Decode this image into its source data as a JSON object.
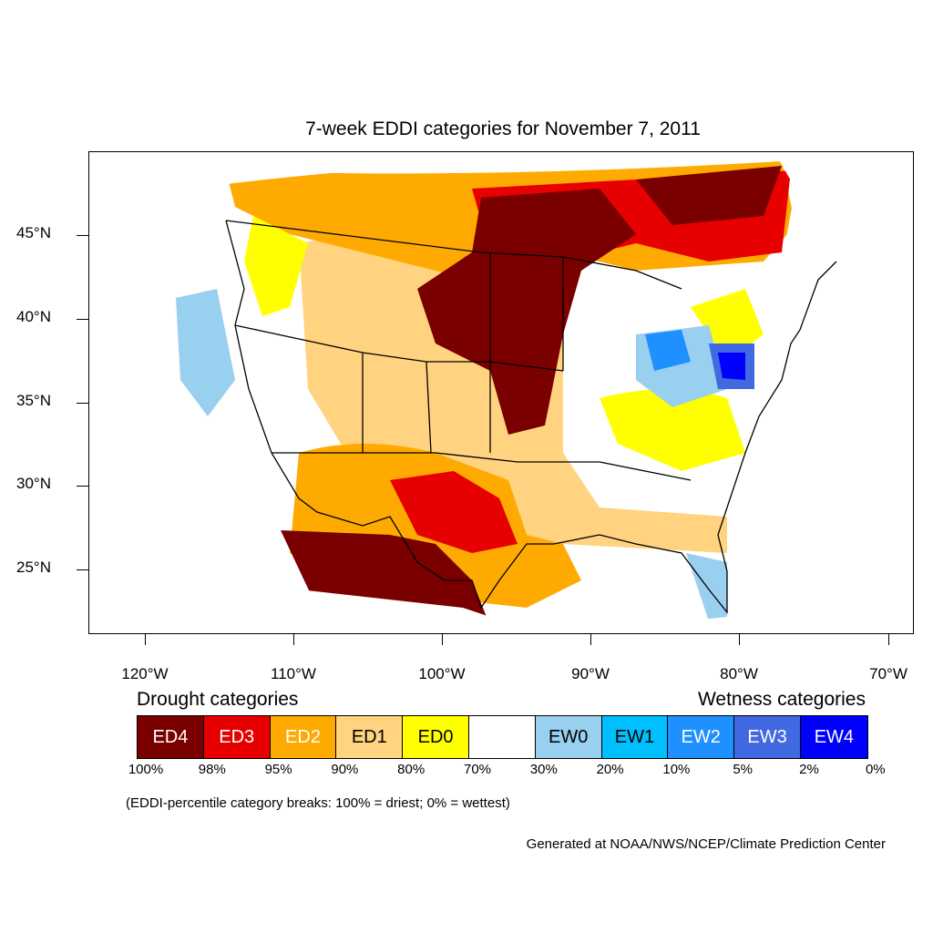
{
  "title": "7-week EDDI categories for November 7, 2011",
  "latitude_labels": [
    "45°N",
    "40°N",
    "35°N",
    "30°N",
    "25°N"
  ],
  "longitude_labels": [
    "120°W",
    "110°W",
    "100°W",
    "90°W",
    "80°W",
    "70°W"
  ],
  "legend": {
    "drought_heading": "Drought categories",
    "wetness_heading": "Wetness categories",
    "categories": [
      {
        "label": "ED4",
        "color": "#7a0000",
        "text_color": "#ffffff"
      },
      {
        "label": "ED3",
        "color": "#e60000",
        "text_color": "#ffffff"
      },
      {
        "label": "ED2",
        "color": "#ffaa00",
        "text_color": "#ffffff"
      },
      {
        "label": "ED1",
        "color": "#ffd37f",
        "text_color": "#000000"
      },
      {
        "label": "ED0",
        "color": "#ffff00",
        "text_color": "#000000"
      },
      {
        "label": "",
        "color": "#ffffff",
        "text_color": "#000000"
      },
      {
        "label": "EW0",
        "color": "#99cfef",
        "text_color": "#000000"
      },
      {
        "label": "EW1",
        "color": "#00bfff",
        "text_color": "#000000"
      },
      {
        "label": "EW2",
        "color": "#1e90ff",
        "text_color": "#ffffff"
      },
      {
        "label": "EW3",
        "color": "#4169e1",
        "text_color": "#ffffff"
      },
      {
        "label": "EW4",
        "color": "#0000ff",
        "text_color": "#ffffff"
      }
    ],
    "percentile_breaks": [
      "100%",
      "98%",
      "95%",
      "90%",
      "80%",
      "70%",
      "30%",
      "20%",
      "10%",
      "5%",
      "2%",
      "0%"
    ]
  },
  "note": "(EDDI-percentile category breaks: 100% = driest; 0% = wettest)",
  "credit": "Generated at NOAA/NWS/NCEP/Climate Prediction Center"
}
